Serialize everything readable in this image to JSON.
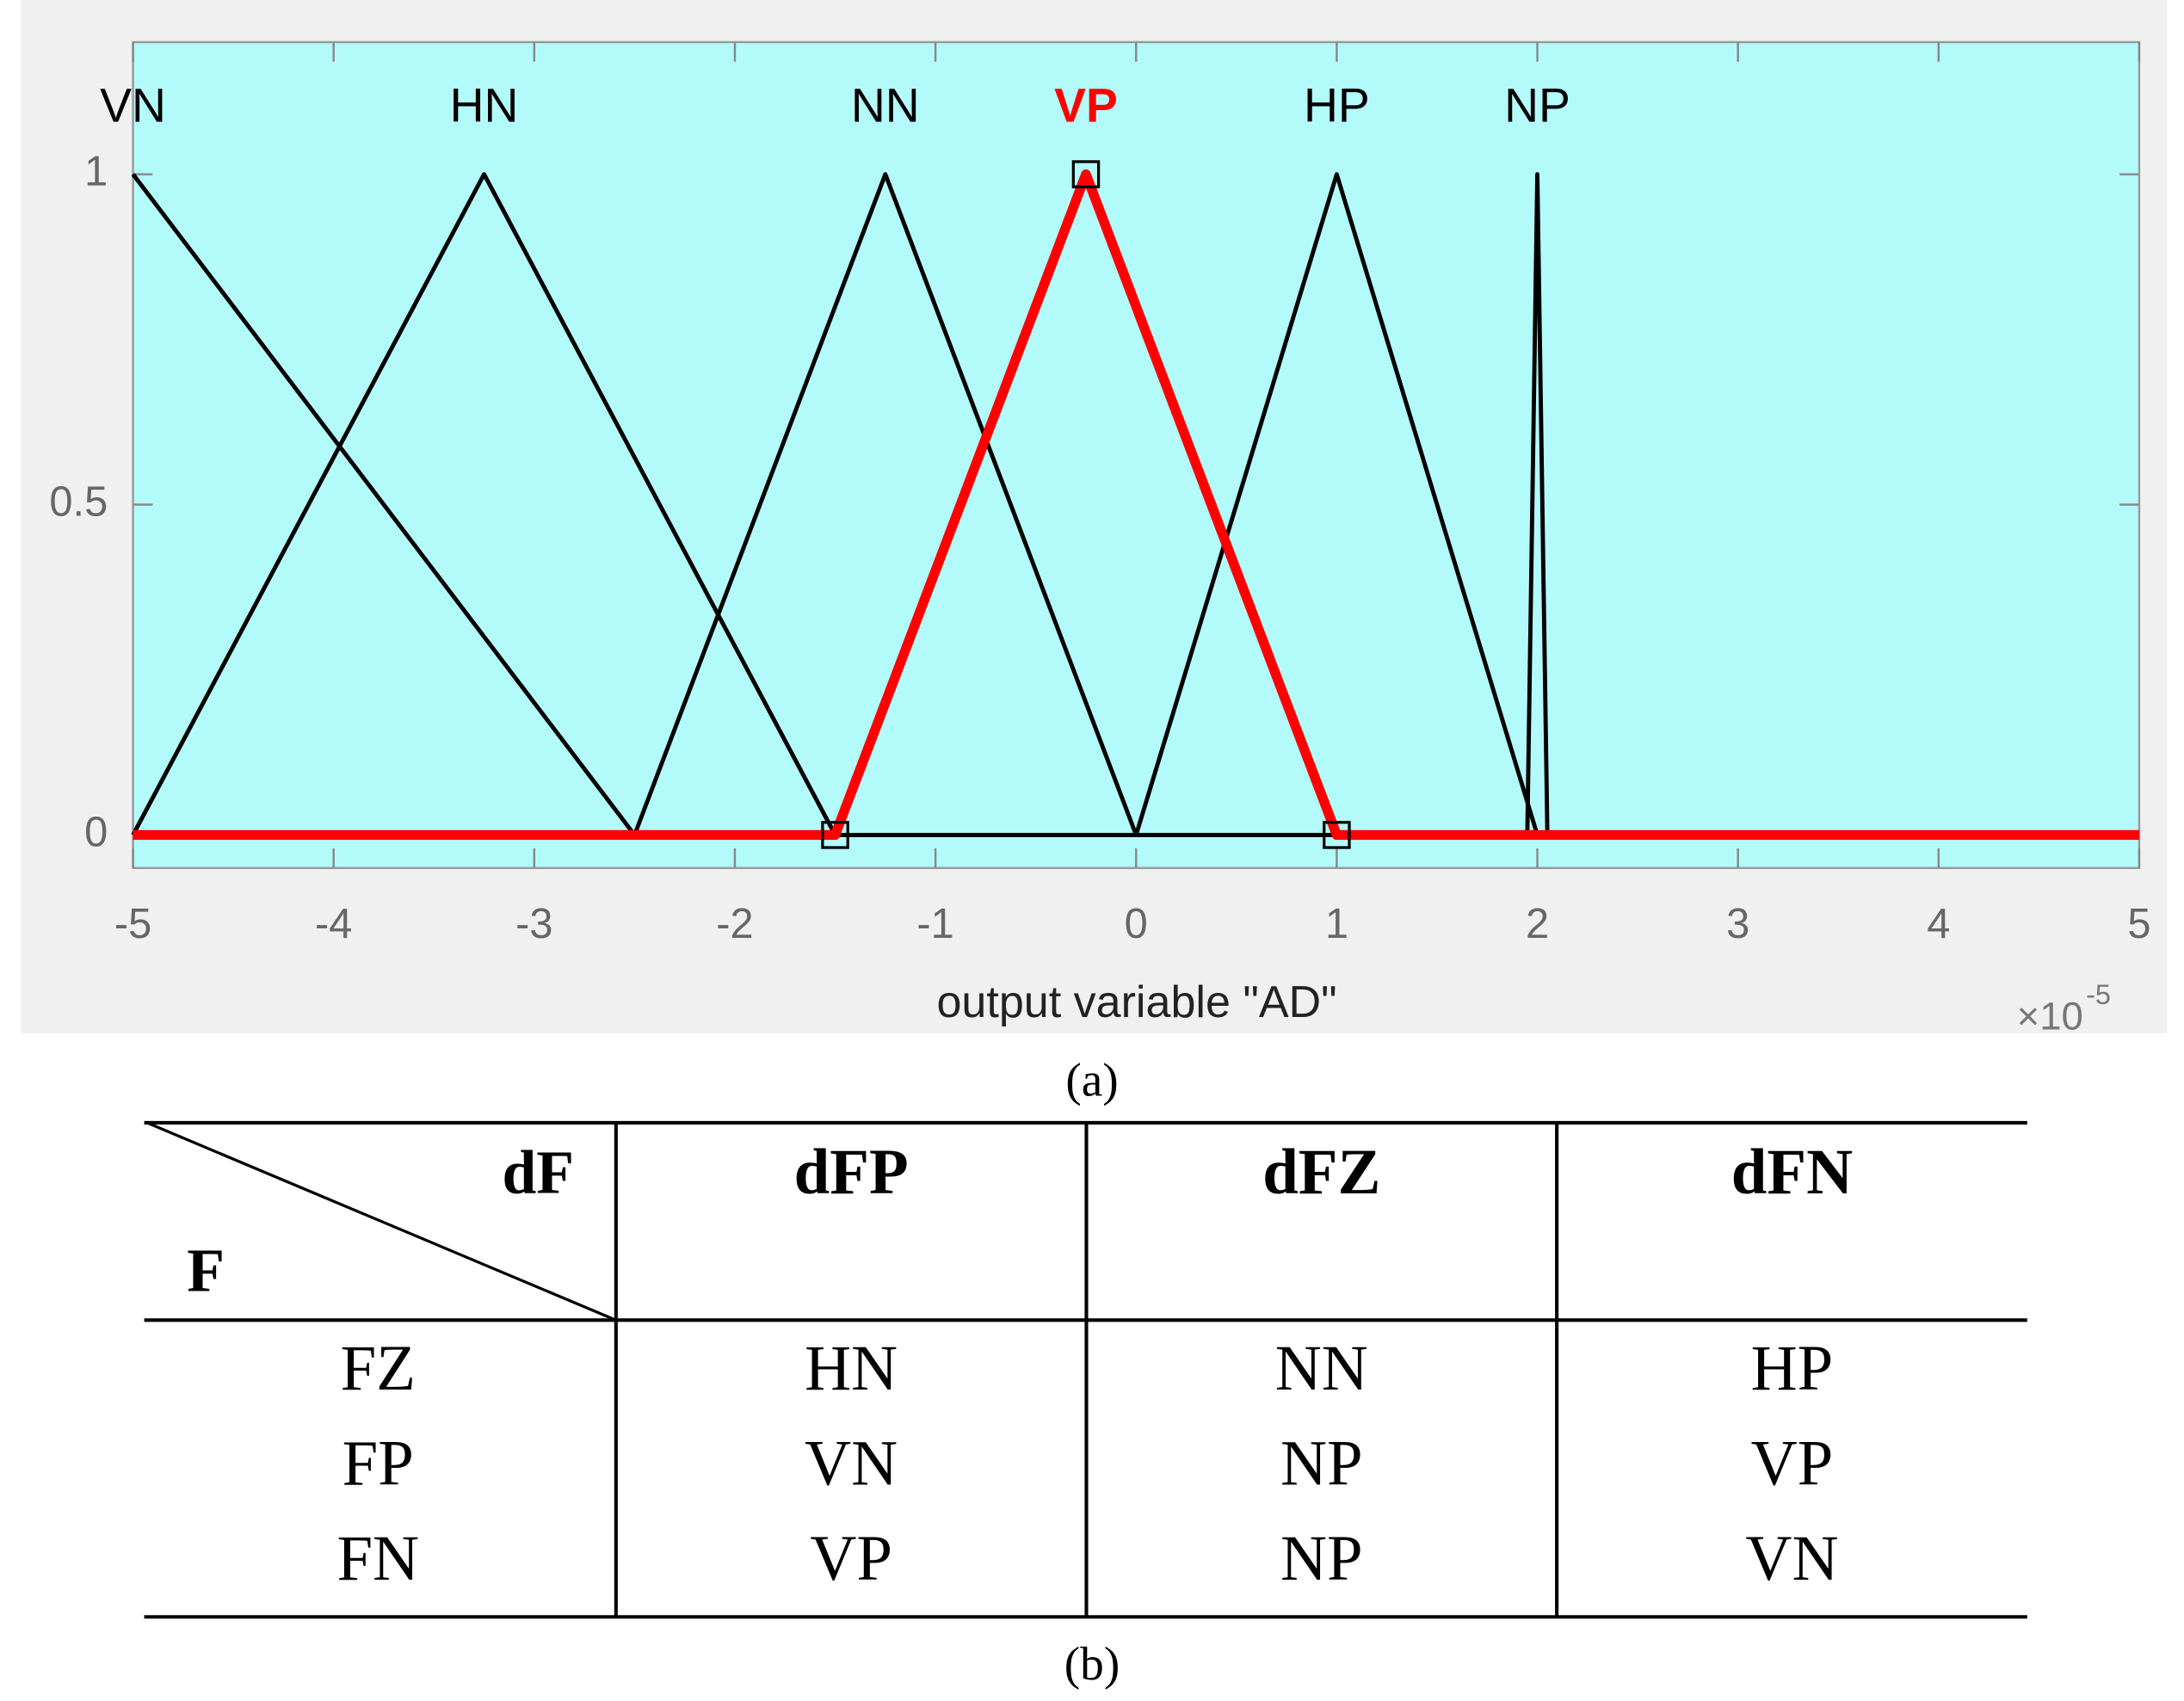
{
  "chart_data": {
    "type": "line",
    "xlabel": "output variable \"AD\"",
    "x_multiplier": "×10",
    "x_exponent": "-5",
    "xlim": [
      -5,
      5
    ],
    "xticks": [
      -5,
      -4,
      -3,
      -2,
      -1,
      0,
      1,
      2,
      3,
      4,
      5
    ],
    "ylim": [
      -0.05,
      1.2
    ],
    "yticks": [
      0,
      0.5,
      1
    ],
    "background": "#b3fbfb",
    "series": [
      {
        "name": "VN",
        "color": "#000000",
        "x": [
          -5,
          -2.5,
          5
        ],
        "values": [
          1,
          0,
          0
        ]
      },
      {
        "name": "HN",
        "color": "#000000",
        "x": [
          -5,
          -3.25,
          -1.5,
          5
        ],
        "values": [
          0,
          1,
          0,
          0
        ]
      },
      {
        "name": "NN",
        "color": "#000000",
        "x": [
          -5,
          -2.5,
          -1.25,
          0,
          5
        ],
        "values": [
          0,
          0,
          1,
          0,
          0
        ]
      },
      {
        "name": "VP",
        "color": "#ff0000",
        "highlight": true,
        "marker": "square",
        "x": [
          -5,
          -1.5,
          -0.25,
          1,
          5
        ],
        "values": [
          0,
          0,
          1,
          0,
          0
        ]
      },
      {
        "name": "HP",
        "color": "#000000",
        "x": [
          -5,
          0,
          1,
          2,
          5
        ],
        "values": [
          0,
          0,
          1,
          0,
          0
        ]
      },
      {
        "name": "NP",
        "color": "#000000",
        "x": [
          -5,
          1.95,
          2,
          2.05,
          5
        ],
        "values": [
          0,
          0,
          1,
          0,
          0
        ]
      }
    ]
  },
  "caption_a": "(a)",
  "table": {
    "corner_top": "dF",
    "corner_bottom": "F",
    "columns": [
      "dFP",
      "dFZ",
      "dFN"
    ],
    "rows": [
      [
        "FZ",
        "HN",
        "NN",
        "HP"
      ],
      [
        "FP",
        "VN",
        "NP",
        "VP"
      ],
      [
        "FN",
        "VP",
        "NP",
        "VN"
      ]
    ]
  },
  "caption_b": "(b)"
}
